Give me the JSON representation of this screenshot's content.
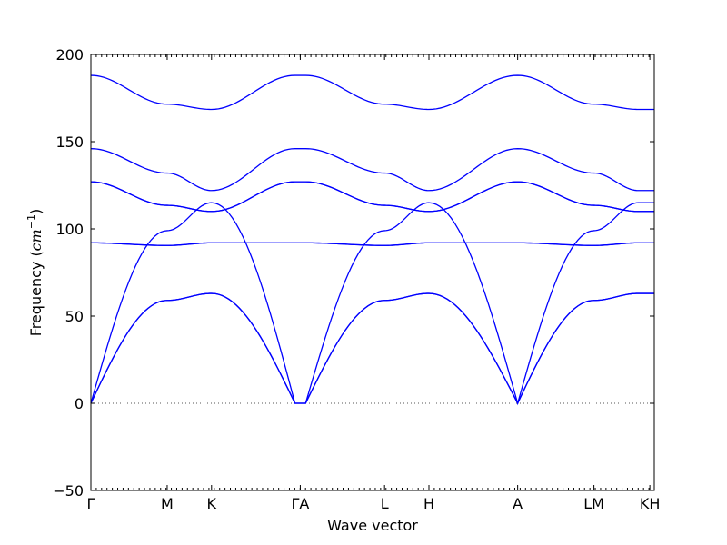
{
  "chart_data": {
    "type": "line",
    "xlabel": "Wave vector",
    "ylabel_text": "Frequency (",
    "ylabel_math": "cm",
    "ylabel_sup": "−1",
    "ylabel_close": ")",
    "ylim": [
      -50,
      200
    ],
    "yticks": [
      -50,
      0,
      50,
      100,
      150,
      200
    ],
    "ytick_labels": [
      "−50",
      "0",
      "50",
      "100",
      "150",
      "200"
    ],
    "xlim": [
      0,
      6.35
    ],
    "xticks": [
      {
        "x": 0,
        "label": "Γ"
      },
      {
        "x": 0.86,
        "label": "M"
      },
      {
        "x": 1.36,
        "label": "K"
      },
      {
        "x": 2.36,
        "label": "ΓA"
      },
      {
        "x": 3.31,
        "label": "L"
      },
      {
        "x": 3.81,
        "label": "H"
      },
      {
        "x": 4.81,
        "label": "A"
      },
      {
        "x": 5.67,
        "label": "LM"
      },
      {
        "x": 6.3,
        "label": "KH"
      }
    ],
    "zero_line": true,
    "grid": false,
    "series": [
      {
        "x": [
          0,
          0.86,
          1.36,
          2.3,
          2.42,
          3.31,
          3.81,
          4.81,
          5.67,
          6.17,
          6.35
        ],
        "y": [
          0,
          59,
          63,
          0,
          0,
          59,
          63,
          0,
          59,
          63,
          63
        ]
      },
      {
        "x": [
          0,
          0.86,
          1.36,
          2.3,
          2.42,
          3.31,
          3.81,
          4.81,
          5.67,
          6.17,
          6.35
        ],
        "y": [
          0,
          59,
          63,
          0,
          0,
          59,
          63,
          0,
          59,
          63,
          63
        ]
      },
      {
        "x": [
          0,
          0.86,
          1.36,
          2.3,
          2.42,
          3.31,
          3.81,
          4.81,
          5.67,
          6.17,
          6.35
        ],
        "y": [
          0,
          99,
          115,
          0,
          0,
          99,
          115,
          0,
          99,
          115,
          115
        ]
      },
      {
        "x": [
          0,
          0.86,
          1.36,
          2.3,
          2.42,
          3.31,
          3.81,
          4.81,
          5.67,
          6.17,
          6.35
        ],
        "y": [
          92,
          90.5,
          92,
          92,
          92,
          90.5,
          92,
          92,
          90.5,
          92,
          92
        ]
      },
      {
        "x": [
          0,
          0.86,
          1.36,
          2.3,
          2.42,
          3.31,
          3.81,
          4.81,
          5.67,
          6.17,
          6.35
        ],
        "y": [
          92,
          90.5,
          92,
          92,
          92,
          90.5,
          92,
          92,
          90.5,
          92,
          92
        ]
      },
      {
        "x": [
          0,
          0.86,
          1.36,
          2.3,
          2.42,
          3.31,
          3.81,
          4.81,
          5.67,
          6.17,
          6.35
        ],
        "y": [
          127,
          113.5,
          110,
          127,
          127,
          113.5,
          110,
          127,
          113.5,
          110,
          110
        ]
      },
      {
        "x": [
          0,
          0.86,
          1.36,
          2.3,
          2.42,
          3.31,
          3.81,
          4.81,
          5.67,
          6.17,
          6.35
        ],
        "y": [
          127,
          113.5,
          110,
          127,
          127,
          113.5,
          110,
          127,
          113.5,
          110,
          110
        ]
      },
      {
        "x": [
          0,
          0.86,
          1.36,
          2.3,
          2.42,
          3.31,
          3.81,
          4.81,
          5.67,
          6.17,
          6.35
        ],
        "y": [
          146,
          132,
          122,
          146,
          146,
          132,
          122,
          146,
          132,
          122,
          122
        ]
      },
      {
        "x": [
          0,
          0.86,
          1.36,
          2.3,
          2.42,
          3.31,
          3.81,
          4.81,
          5.67,
          6.17,
          6.35
        ],
        "y": [
          188,
          171.5,
          168.5,
          188,
          188,
          171.5,
          168.5,
          188,
          171.5,
          168.5,
          168.5
        ]
      }
    ]
  }
}
